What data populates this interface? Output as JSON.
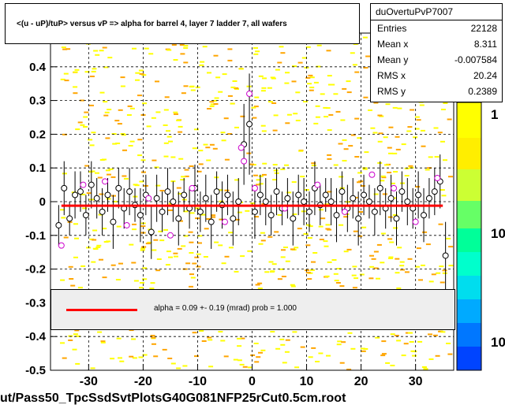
{
  "chart_data": {
    "type": "scatter",
    "title": "<(u - uP)/tuP> versus   vP => alpha for barrel 4, layer 7 ladder 7, all wafers",
    "xlim": [
      -37,
      37
    ],
    "ylim": [
      -0.5,
      0.5
    ],
    "x_ticks": [
      "-30",
      "-20",
      "-10",
      "0",
      "10",
      "20",
      "30"
    ],
    "x_tick_values": [
      -30,
      -20,
      -10,
      0,
      10,
      20,
      30
    ],
    "y_ticks": [
      "-0.5",
      "-0.4",
      "-0.3",
      "-0.2",
      "-0.1",
      "0",
      "0.1",
      "0.2",
      "0.3",
      "0.4"
    ],
    "y_tick_values": [
      -0.5,
      -0.4,
      -0.3,
      -0.2,
      -0.1,
      0,
      0.1,
      0.2,
      0.3,
      0.4
    ],
    "grid": true,
    "colorbar_labels": [
      "1",
      "10",
      "10"
    ],
    "fit_line": {
      "x": [
        -35,
        35
      ],
      "y": [
        -0.012,
        -0.012
      ],
      "color": "#ff0000"
    },
    "series": [
      {
        "marker": "circle-black",
        "x": [
          -35.5,
          -34.5,
          -33.5,
          -32.5,
          -31.5,
          -30.5,
          -29.5,
          -28.5,
          -27.5,
          -26.5,
          -25.5,
          -24.5,
          -23.5,
          -22.5,
          -21.5,
          -20.5,
          -19.5,
          -18.5,
          -17.5,
          -16.5,
          -15.5,
          -14.5,
          -13.5,
          -12.5,
          -11.5,
          -10.5,
          -9.5,
          -8.5,
          -7.5,
          -6.5,
          -5.5,
          -4.5,
          -3.5,
          -2.5,
          -1.5,
          -0.5,
          0.5,
          1.5,
          2.5,
          3.5,
          4.5,
          5.5,
          6.5,
          7.5,
          8.5,
          9.5,
          10.5,
          11.5,
          12.5,
          13.5,
          14.5,
          15.5,
          16.5,
          17.5,
          18.5,
          19.5,
          20.5,
          21.5,
          22.5,
          23.5,
          24.5,
          25.5,
          26.5,
          27.5,
          28.5,
          29.5,
          30.5,
          31.5,
          32.5,
          33.5,
          34.5,
          35.5
        ],
        "y": [
          -0.07,
          0.04,
          -0.05,
          0.02,
          0.03,
          -0.04,
          0.05,
          0.01,
          -0.03,
          0.02,
          -0.06,
          0.04,
          -0.02,
          0.03,
          -0.01,
          -0.04,
          0.02,
          -0.09,
          0.01,
          -0.03,
          0.03,
          0.0,
          -0.05,
          0.02,
          -0.02,
          0.04,
          -0.03,
          0.01,
          -0.06,
          0.03,
          -0.01,
          0.02,
          -0.05,
          0.0,
          0.17,
          0.23,
          -0.03,
          0.02,
          0.0,
          -0.04,
          0.03,
          -0.02,
          0.01,
          -0.05,
          0.02,
          0.0,
          -0.03,
          0.04,
          -0.01,
          0.02,
          0.0,
          -0.04,
          0.03,
          -0.02,
          0.01,
          -0.05,
          0.02,
          0.0,
          -0.03,
          0.04,
          -0.02,
          0.01,
          -0.05,
          0.03,
          0.0,
          -0.02,
          0.02,
          -0.04,
          0.01,
          0.03,
          0.06,
          -0.16
        ],
        "err": [
          0.06,
          0.08,
          0.05,
          0.07,
          0.06,
          0.06,
          0.07,
          0.06,
          0.07,
          0.05,
          0.08,
          0.06,
          0.06,
          0.07,
          0.05,
          0.08,
          0.06,
          0.08,
          0.07,
          0.06,
          0.07,
          0.06,
          0.08,
          0.05,
          0.06,
          0.07,
          0.06,
          0.07,
          0.08,
          0.06,
          0.07,
          0.06,
          0.08,
          0.07,
          0.12,
          0.15,
          0.08,
          0.06,
          0.07,
          0.06,
          0.07,
          0.05,
          0.06,
          0.08,
          0.06,
          0.07,
          0.06,
          0.08,
          0.06,
          0.05,
          0.07,
          0.08,
          0.06,
          0.07,
          0.06,
          0.08,
          0.06,
          0.05,
          0.07,
          0.08,
          0.06,
          0.07,
          0.08,
          0.06,
          0.07,
          0.06,
          0.07,
          0.08,
          0.06,
          0.07,
          0.08,
          0.1
        ]
      },
      {
        "marker": "circle-magenta",
        "x": [
          -35,
          -31,
          -27,
          -23,
          -19,
          -15,
          -11,
          -5,
          -2,
          -1.5,
          -0.5,
          0.5,
          6,
          12,
          17,
          22,
          26,
          30,
          34
        ],
        "y": [
          -0.13,
          0.05,
          0.06,
          -0.07,
          0.01,
          -0.1,
          0.04,
          -0.06,
          0.16,
          0.12,
          0.32,
          0.04,
          -0.02,
          0.05,
          -0.03,
          0.08,
          0.04,
          -0.06,
          0.07
        ]
      }
    ],
    "legend_line_color": "#ff0000"
  },
  "stats": {
    "title": "duOvertuPvP7007",
    "rows": [
      {
        "name": "Entries",
        "value": "22128"
      },
      {
        "name": "Mean x",
        "value": "8.311"
      },
      {
        "name": "Mean y",
        "value": "-0.007584"
      },
      {
        "name": "RMS x",
        "value": "20.24"
      },
      {
        "name": "RMS y",
        "value": "0.2389"
      }
    ]
  },
  "fit_legend": "alpha =    0.09 +-  0.19 (mrad) prob = 1.000",
  "footer": "ut/Pass50_TpcSsdSvtPlotsG40G081NFP25rCut0.5cm.root",
  "colors": {
    "band_yellow": "#ffff00",
    "band_orange": "#ffa500",
    "colorbar_top": "#ffff00",
    "colorbar_mid": "#00ff66",
    "colorbar_low": "#0055ff"
  }
}
